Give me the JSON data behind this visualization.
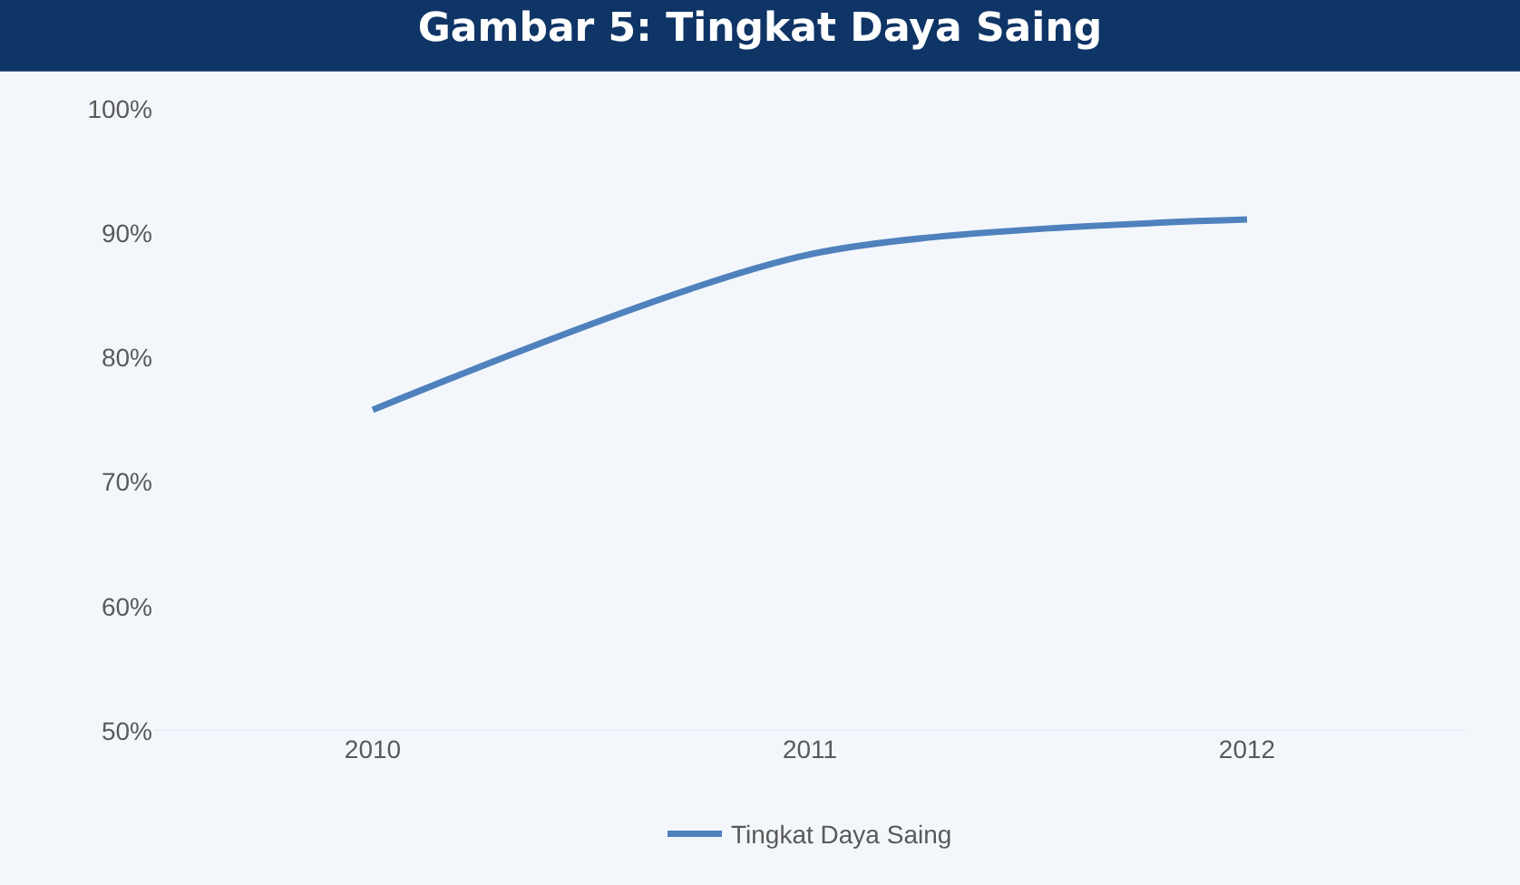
{
  "chart_data": {
    "type": "line",
    "title": "Gambar 5: Tingkat Daya Saing",
    "categories": [
      "2010",
      "2011",
      "2012"
    ],
    "series": [
      {
        "name": "Tingkat Daya Saing",
        "color": "#4f81bd",
        "values": [
          75.8,
          88.3,
          91.1
        ]
      }
    ],
    "ylim": [
      50,
      100
    ],
    "yticks": [
      {
        "value": 50,
        "label": "50%"
      },
      {
        "value": 60,
        "label": "60%"
      },
      {
        "value": 70,
        "label": "70%"
      },
      {
        "value": 80,
        "label": "80%"
      },
      {
        "value": 90,
        "label": "90%"
      },
      {
        "value": 100,
        "label": "100%"
      }
    ],
    "grid": false,
    "legend": "bottom",
    "marker": "none",
    "line_style": "solid"
  }
}
